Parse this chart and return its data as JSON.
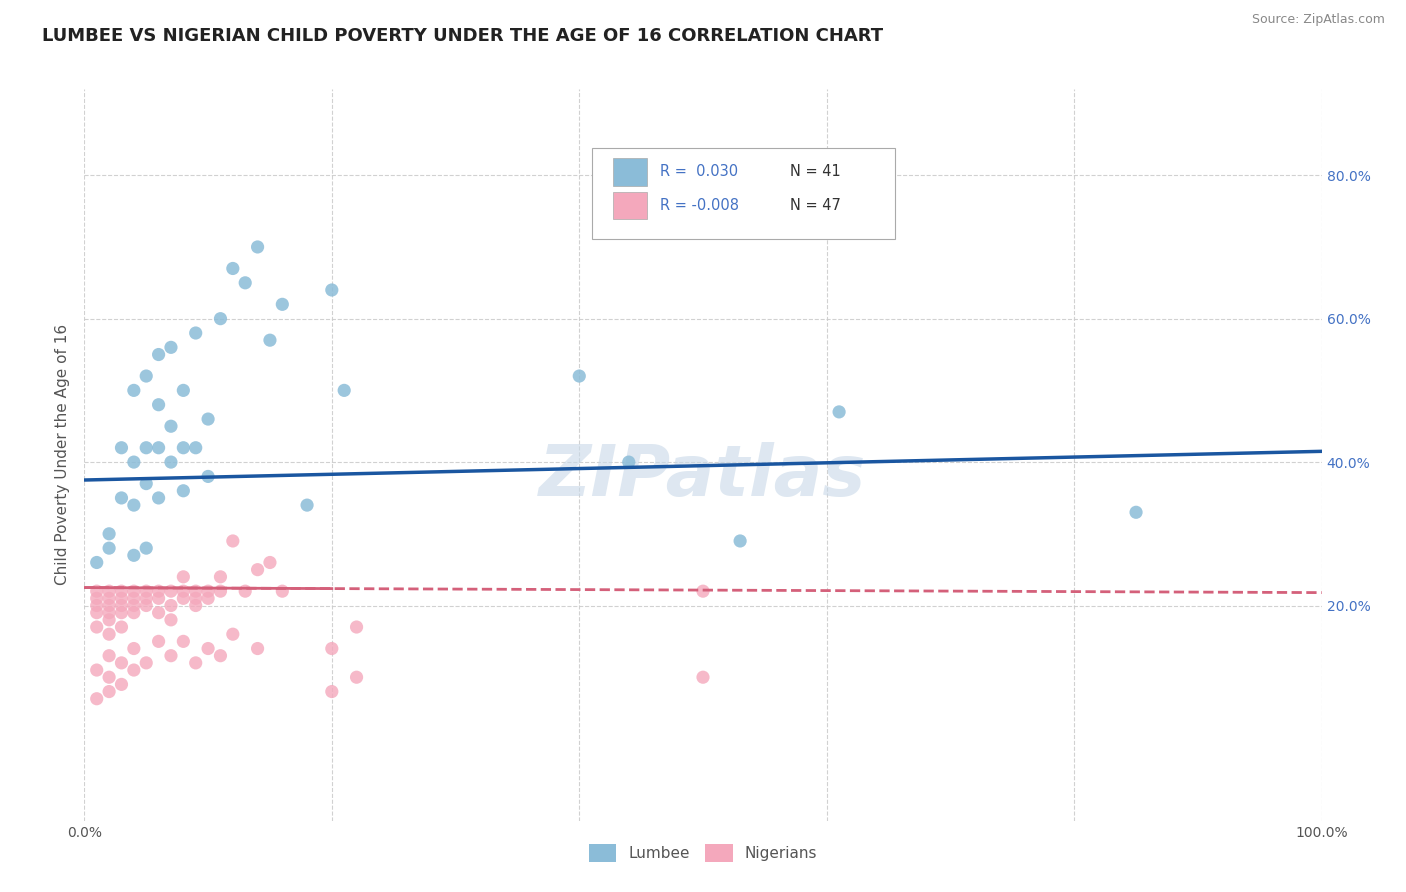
{
  "title": "LUMBEE VS NIGERIAN CHILD POVERTY UNDER THE AGE OF 16 CORRELATION CHART",
  "source": "Source: ZipAtlas.com",
  "ylabel": "Child Poverty Under the Age of 16",
  "xlim": [
    0.0,
    1.0
  ],
  "ylim": [
    -0.1,
    0.92
  ],
  "y_ticks": [
    0.2,
    0.4,
    0.6,
    0.8
  ],
  "y_tick_labels": [
    "20.0%",
    "40.0%",
    "60.0%",
    "80.0%"
  ],
  "lumbee_color": "#8bbcd8",
  "nigerian_color": "#f4a8bc",
  "lumbee_line_color": "#1a56a0",
  "nigerian_line_color": "#d4607a",
  "background_color": "#ffffff",
  "grid_color": "#cccccc",
  "watermark": "ZIPatlas",
  "legend_R_lumbee": "R =  0.030",
  "legend_N_lumbee": "N = 41",
  "legend_R_nigerian": "R = -0.008",
  "legend_N_nigerian": "N = 47",
  "lumbee_x": [
    0.01,
    0.02,
    0.02,
    0.03,
    0.03,
    0.04,
    0.04,
    0.04,
    0.04,
    0.05,
    0.05,
    0.05,
    0.05,
    0.06,
    0.06,
    0.06,
    0.06,
    0.07,
    0.07,
    0.07,
    0.08,
    0.08,
    0.08,
    0.09,
    0.09,
    0.1,
    0.1,
    0.11,
    0.12,
    0.13,
    0.14,
    0.15,
    0.16,
    0.18,
    0.2,
    0.21,
    0.4,
    0.44,
    0.53,
    0.61,
    0.85
  ],
  "lumbee_y": [
    0.26,
    0.28,
    0.3,
    0.35,
    0.42,
    0.27,
    0.34,
    0.4,
    0.5,
    0.28,
    0.37,
    0.42,
    0.52,
    0.35,
    0.42,
    0.48,
    0.55,
    0.4,
    0.45,
    0.56,
    0.36,
    0.42,
    0.5,
    0.42,
    0.58,
    0.38,
    0.46,
    0.6,
    0.67,
    0.65,
    0.7,
    0.57,
    0.62,
    0.34,
    0.64,
    0.5,
    0.52,
    0.4,
    0.29,
    0.47,
    0.33
  ],
  "nigerian_x": [
    0.01,
    0.01,
    0.01,
    0.01,
    0.01,
    0.02,
    0.02,
    0.02,
    0.02,
    0.02,
    0.02,
    0.03,
    0.03,
    0.03,
    0.03,
    0.03,
    0.04,
    0.04,
    0.04,
    0.04,
    0.05,
    0.05,
    0.05,
    0.06,
    0.06,
    0.06,
    0.07,
    0.07,
    0.07,
    0.08,
    0.08,
    0.08,
    0.09,
    0.09,
    0.09,
    0.1,
    0.1,
    0.11,
    0.11,
    0.12,
    0.13,
    0.14,
    0.15,
    0.16,
    0.2,
    0.22,
    0.5
  ],
  "nigerian_y": [
    0.2,
    0.21,
    0.22,
    0.19,
    0.17,
    0.21,
    0.22,
    0.2,
    0.19,
    0.18,
    0.16,
    0.22,
    0.21,
    0.2,
    0.19,
    0.17,
    0.22,
    0.21,
    0.2,
    0.19,
    0.22,
    0.21,
    0.2,
    0.22,
    0.21,
    0.19,
    0.22,
    0.2,
    0.18,
    0.24,
    0.22,
    0.21,
    0.22,
    0.21,
    0.2,
    0.22,
    0.21,
    0.24,
    0.22,
    0.29,
    0.22,
    0.25,
    0.26,
    0.22,
    0.14,
    0.17,
    0.22
  ],
  "nigerian_low_x": [
    0.01,
    0.01,
    0.02,
    0.02,
    0.02,
    0.03,
    0.03,
    0.04,
    0.04,
    0.05,
    0.06,
    0.07,
    0.08,
    0.09,
    0.1,
    0.11,
    0.12,
    0.14,
    0.2,
    0.22,
    0.5
  ],
  "nigerian_low_y": [
    0.11,
    0.07,
    0.13,
    0.1,
    0.08,
    0.12,
    0.09,
    0.14,
    0.11,
    0.12,
    0.15,
    0.13,
    0.15,
    0.12,
    0.14,
    0.13,
    0.16,
    0.14,
    0.08,
    0.1,
    0.1
  ],
  "title_fontsize": 13,
  "axis_label_fontsize": 11,
  "tick_fontsize": 10,
  "legend_fontsize": 11
}
